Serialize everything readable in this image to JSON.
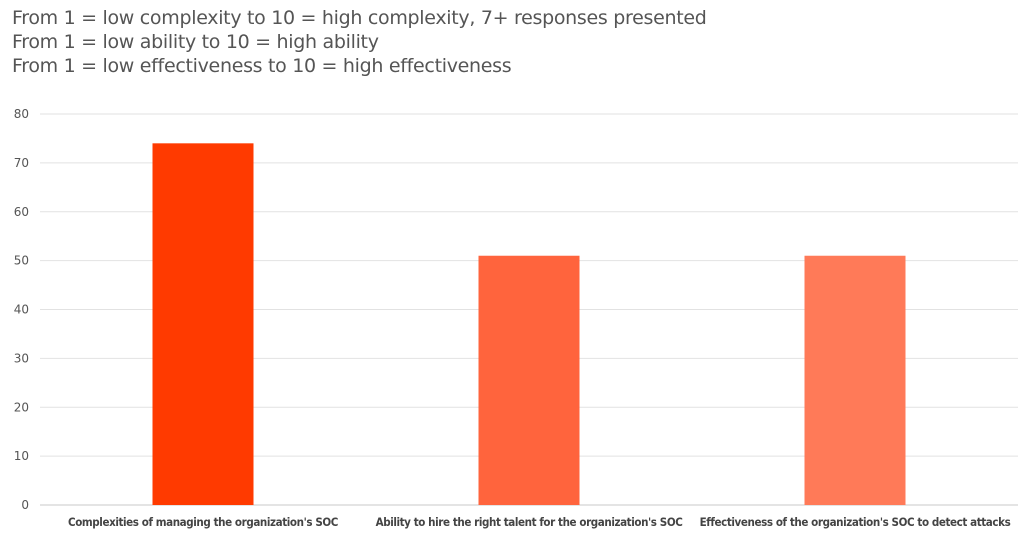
{
  "chart_data": {
    "type": "bar",
    "subtitles": [
      "From 1 = low complexity to 10 = high complexity, 7+ responses presented",
      "From 1 = low ability to 10 = high ability",
      "From 1 = low effectiveness to 10 = high effectiveness"
    ],
    "categories": [
      "Complexities of managing the organization's SOC",
      "Ability to hire the right talent for the organization's SOC",
      "Effectiveness of the organization's SOC to detect attacks"
    ],
    "values": [
      74,
      51,
      51
    ],
    "colors": [
      "#FF3A00",
      "#FF643D",
      "#FF7A58"
    ],
    "ylim": [
      0,
      80
    ],
    "yticks": [
      0,
      10,
      20,
      30,
      40,
      50,
      60,
      70,
      80
    ],
    "grid": true,
    "xlabel": "",
    "ylabel": ""
  }
}
